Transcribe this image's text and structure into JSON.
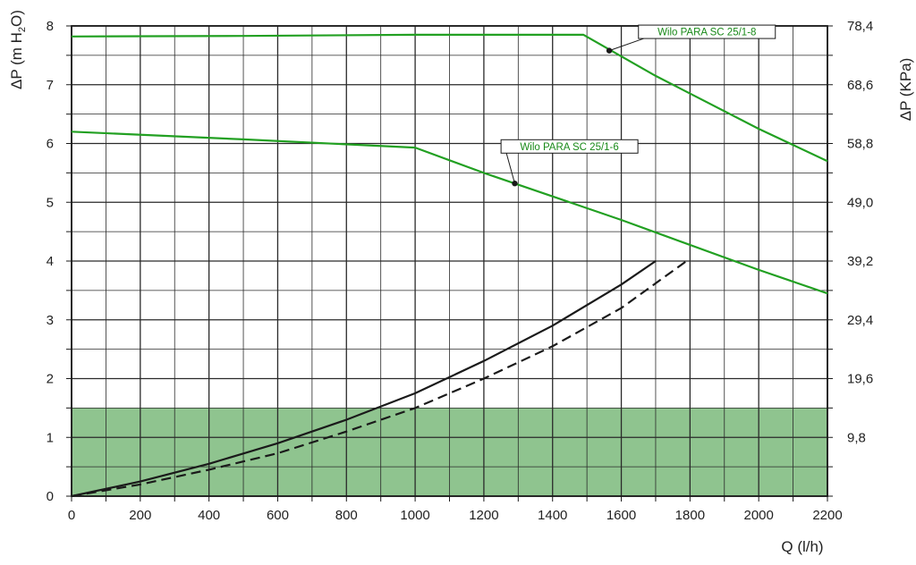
{
  "chart_data": {
    "type": "line",
    "y_left_label": "ΔP (m H",
    "y_left_sub": "2",
    "y_left_label_tail": "O)",
    "y_right_label": "ΔP (KPa)",
    "x_label": "Q (l/h)",
    "xlim": [
      0,
      2200
    ],
    "ylim": [
      0,
      8
    ],
    "x_ticks": [
      "0",
      "200",
      "400",
      "600",
      "800",
      "1000",
      "1200",
      "1400",
      "1600",
      "1800",
      "2000",
      "2200"
    ],
    "y_left_ticks": [
      "0",
      "1",
      "2",
      "3",
      "4",
      "5",
      "6",
      "7",
      "8"
    ],
    "y_right_ticks": [
      {
        "y": 1,
        "label": "9,8"
      },
      {
        "y": 2,
        "label": "19,6"
      },
      {
        "y": 3,
        "label": "29,4"
      },
      {
        "y": 4,
        "label": "39,2"
      },
      {
        "y": 5,
        "label": "49,0"
      },
      {
        "y": 6,
        "label": "58,8"
      },
      {
        "y": 7,
        "label": "68,6"
      },
      {
        "y": 8,
        "label": "78,4"
      }
    ],
    "grid": true,
    "shaded_band": {
      "y_from": 0,
      "y_to": 1.5,
      "color": "#8fc48f"
    },
    "series": [
      {
        "name": "Wilo PARA SC 25/1-8",
        "color": "#22a022",
        "points": [
          [
            0,
            7.82
          ],
          [
            500,
            7.83
          ],
          [
            1000,
            7.85
          ],
          [
            1490,
            7.85
          ],
          [
            1700,
            7.15
          ],
          [
            2000,
            6.25
          ],
          [
            2200,
            5.7
          ]
        ]
      },
      {
        "name": "Wilo PARA SC 25/1-6",
        "color": "#22a022",
        "points": [
          [
            0,
            6.2
          ],
          [
            500,
            6.07
          ],
          [
            1000,
            5.93
          ],
          [
            1200,
            5.5
          ],
          [
            1600,
            4.7
          ],
          [
            2000,
            3.85
          ],
          [
            2200,
            3.45
          ]
        ]
      },
      {
        "name": "",
        "color": "#1a1a1a",
        "dash": false,
        "points": [
          [
            0,
            0
          ],
          [
            200,
            0.25
          ],
          [
            400,
            0.55
          ],
          [
            600,
            0.9
          ],
          [
            800,
            1.3
          ],
          [
            1000,
            1.75
          ],
          [
            1200,
            2.3
          ],
          [
            1400,
            2.9
          ],
          [
            1600,
            3.6
          ],
          [
            1700,
            4.0
          ]
        ]
      },
      {
        "name": "",
        "color": "#1a1a1a",
        "dash": true,
        "points": [
          [
            0,
            0
          ],
          [
            200,
            0.2
          ],
          [
            400,
            0.45
          ],
          [
            600,
            0.73
          ],
          [
            800,
            1.1
          ],
          [
            1000,
            1.5
          ],
          [
            1200,
            2.0
          ],
          [
            1400,
            2.55
          ],
          [
            1600,
            3.2
          ],
          [
            1790,
            4.0
          ]
        ]
      }
    ],
    "annotations": [
      {
        "text": "Wilo PARA SC 25/1-8",
        "point": [
          1565,
          7.58
        ],
        "box_anchor": [
          1650,
          7.9
        ]
      },
      {
        "text": "Wilo PARA SC 25/1-6",
        "point": [
          1290,
          5.32
        ],
        "box_anchor": [
          1250,
          5.95
        ]
      }
    ]
  }
}
